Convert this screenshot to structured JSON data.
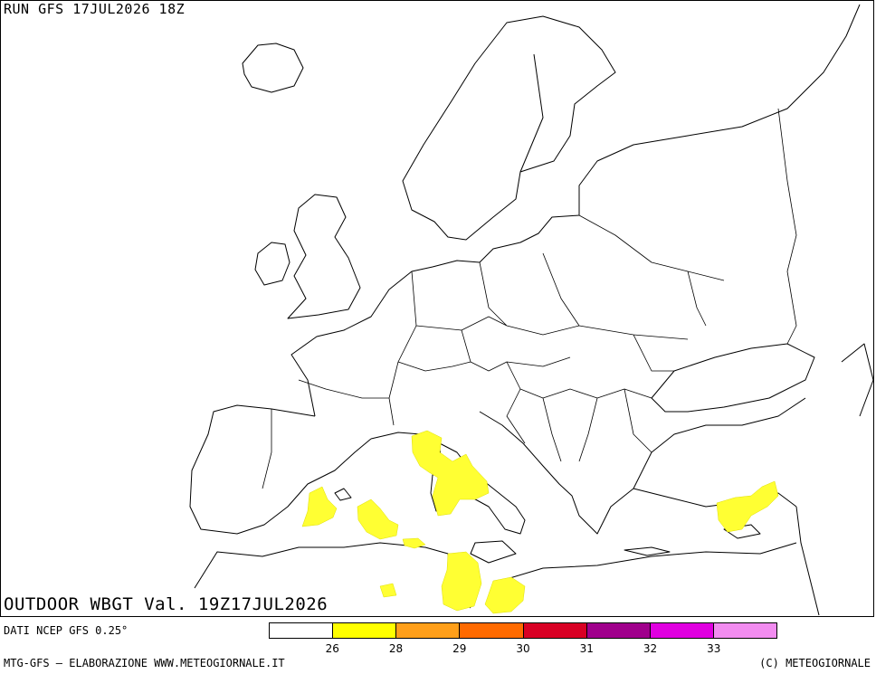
{
  "header": {
    "run_label": "RUN GFS 17JUL2026 18Z"
  },
  "map": {
    "title": "OUTDOOR WBGT Val. 19Z17JUL2026",
    "data_source": "DATI NCEP GFS 0.25°",
    "region": "Europe & Mediterranean",
    "colors": {
      "land_outline": "#000000",
      "background": "#ffffff",
      "wbgt_26_28": "#ffff33"
    }
  },
  "legend": {
    "colors": [
      "#ffffff",
      "#ffff00",
      "#ff9f1a",
      "#ff6a00",
      "#d80024",
      "#a0008c",
      "#e000e0",
      "#f28cf0"
    ],
    "tick_labels": [
      "26",
      "28",
      "29",
      "30",
      "31",
      "32",
      "33"
    ]
  },
  "footer": {
    "left": "MTG-GFS — ELABORAZIONE WWW.METEOGIORNALE.IT",
    "right": "(C) METEOGIORNALE"
  }
}
